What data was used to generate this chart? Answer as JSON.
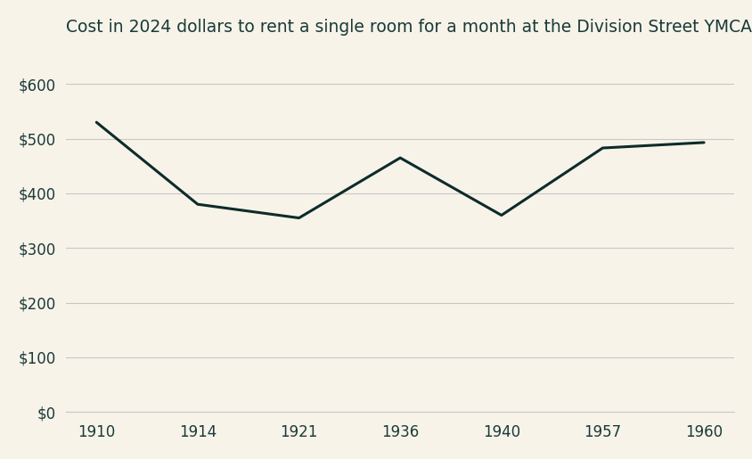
{
  "title": "Cost in 2024 dollars to rent a single room for a month at the Division Street YMCA",
  "x_labels": [
    "1910",
    "1914",
    "1921",
    "1936",
    "1940",
    "1957",
    "1960"
  ],
  "y_values": [
    530,
    380,
    355,
    465,
    360,
    483,
    493
  ],
  "y_ticks": [
    0,
    100,
    200,
    300,
    400,
    500,
    600
  ],
  "y_tick_labels": [
    "$0",
    "$100",
    "$200",
    "$300",
    "$400",
    "$500",
    "$600"
  ],
  "ylim": [
    0,
    650
  ],
  "line_color": "#0d2b2b",
  "background_color": "#f7f3e8",
  "grid_color": "#c8c8c8",
  "title_color": "#1a3a3a",
  "tick_color": "#1a3a3a",
  "line_width": 2.2,
  "title_fontsize": 13.5
}
